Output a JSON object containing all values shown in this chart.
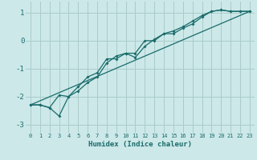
{
  "xlabel": "Humidex (Indice chaleur)",
  "xlim": [
    -0.5,
    23.5
  ],
  "ylim": [
    -3.3,
    1.4
  ],
  "xticks": [
    0,
    1,
    2,
    3,
    4,
    5,
    6,
    7,
    8,
    9,
    10,
    11,
    12,
    13,
    14,
    15,
    16,
    17,
    18,
    19,
    20,
    21,
    22,
    23
  ],
  "yticks": [
    -3,
    -2,
    -1,
    0,
    1
  ],
  "background_color": "#cce8e8",
  "grid_color": "#aacccc",
  "line_color": "#1a6b6b",
  "line1_x": [
    0,
    1,
    2,
    3,
    4,
    5,
    6,
    7,
    8,
    9,
    10,
    11,
    12,
    13,
    14,
    15,
    16,
    17,
    18,
    19,
    20,
    21,
    22,
    23
  ],
  "line1_y": [
    -2.3,
    -2.3,
    -2.4,
    -2.7,
    -2.0,
    -1.8,
    -1.5,
    -1.3,
    -0.8,
    -0.55,
    -0.45,
    -0.45,
    0.0,
    0.0,
    0.25,
    0.35,
    0.5,
    0.7,
    0.9,
    1.05,
    1.1,
    1.05,
    1.05,
    1.05
  ],
  "line2_x": [
    0,
    1,
    2,
    3,
    4,
    5,
    6,
    7,
    8,
    9,
    10,
    11,
    12,
    13,
    14,
    15,
    16,
    17,
    18,
    19,
    20,
    21,
    22,
    23
  ],
  "line2_y": [
    -2.3,
    -2.3,
    -2.4,
    -1.95,
    -2.0,
    -1.65,
    -1.3,
    -1.15,
    -0.65,
    -0.65,
    -0.45,
    -0.6,
    -0.2,
    0.05,
    0.25,
    0.25,
    0.45,
    0.6,
    0.85,
    1.05,
    1.1,
    1.05,
    1.05,
    1.05
  ],
  "line3_x": [
    0,
    23
  ],
  "line3_y": [
    -2.3,
    1.05
  ]
}
